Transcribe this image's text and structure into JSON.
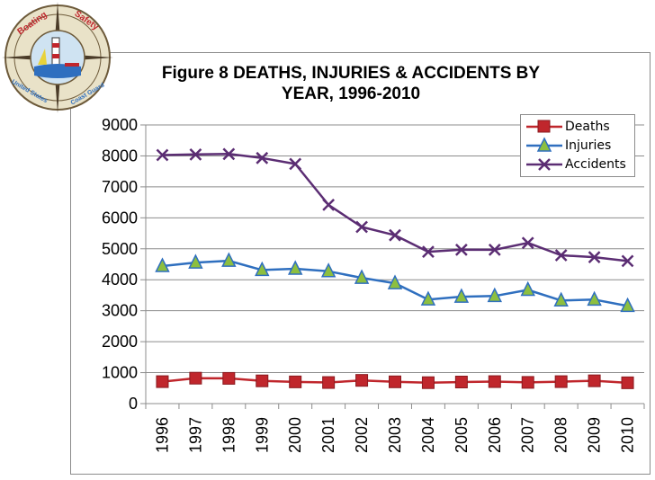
{
  "title_line1": "Figure 8   DEATHS, INJURIES & ACCIDENTS BY",
  "title_line2": "YEAR, 1996-2010",
  "logo": {
    "icon": "boating-safety-seal-icon",
    "text_top_left": "Boating",
    "text_top_right": "Safety",
    "text_bottom_left": "United States",
    "text_bottom_right": "Coast Guard"
  },
  "colors": {
    "deaths": "#c0262c",
    "injuries": "#2f6fbf",
    "accidents": "#5b2d73",
    "injuries_marker_fill": "#8dbf3f"
  },
  "chart_data": {
    "type": "line",
    "title": "Figure 8   DEATHS, INJURIES & ACCIDENTS BY YEAR, 1996-2010",
    "xlabel": "",
    "ylabel": "",
    "ylim": [
      0,
      9000
    ],
    "yticks": [
      "0",
      "1000",
      "2000",
      "3000",
      "4000",
      "5000",
      "6000",
      "7000",
      "8000",
      "9000"
    ],
    "categories": [
      "1996",
      "1997",
      "1998",
      "1999",
      "2000",
      "2001",
      "2002",
      "2003",
      "2004",
      "2005",
      "2006",
      "2007",
      "2008",
      "2009",
      "2010"
    ],
    "grid": "horizontal",
    "legend_position": "top-right",
    "series": [
      {
        "name": "Deaths",
        "marker": "square",
        "values": [
          709,
          821,
          815,
          734,
          701,
          681,
          750,
          703,
          676,
          697,
          710,
          685,
          709,
          736,
          672
        ]
      },
      {
        "name": "Injuries",
        "marker": "triangle",
        "values": [
          4442,
          4555,
          4612,
          4315,
          4355,
          4274,
          4062,
          3888,
          3363,
          3451,
          3474,
          3673,
          3331,
          3358,
          3153
        ]
      },
      {
        "name": "Accidents",
        "marker": "x",
        "values": [
          8026,
          8047,
          8061,
          7931,
          7740,
          6419,
          5705,
          5438,
          4904,
          4969,
          4967,
          5191,
          4789,
          4730,
          4604
        ]
      }
    ]
  }
}
